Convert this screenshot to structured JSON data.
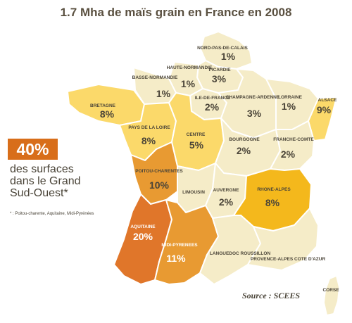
{
  "title": "1.7 Mha de maïs grain en France en 2008",
  "callout": {
    "percent": "40%",
    "lines": [
      "des surfaces",
      "dans le Grand",
      "Sud-Ouest*"
    ],
    "footnote": "* : Poitou-charente, Aquitaine, Midi-Pyrénées"
  },
  "source": "Source : SCEES",
  "colors": {
    "pale": "#f5ecc8",
    "light_yellow": "#fbd96a",
    "yellow": "#f4b81c",
    "orange": "#e89a32",
    "dark_orange": "#e0762a",
    "border": "#ffffff"
  },
  "regions": [
    {
      "name": "NORD-PAS-DE-CALAIS",
      "value": "1%"
    },
    {
      "name": "PICARDIE",
      "value": "3%"
    },
    {
      "name": "HAUTE-NORMANDIE",
      "value": "1%"
    },
    {
      "name": "BASSE-NORMANDIE",
      "value": "1%"
    },
    {
      "name": "ILE-DE-FRANCE",
      "value": "2%"
    },
    {
      "name": "CHAMPAGNE-ARDENNE",
      "value": "3%"
    },
    {
      "name": "LORRAINE",
      "value": "1%"
    },
    {
      "name": "ALSACE",
      "value": "9%"
    },
    {
      "name": "BRETAGNE",
      "value": "8%"
    },
    {
      "name": "PAYS DE LA LOIRE",
      "value": "8%"
    },
    {
      "name": "CENTRE",
      "value": "5%"
    },
    {
      "name": "BOURGOGNE",
      "value": "2%"
    },
    {
      "name": "FRANCHE-COMTE",
      "value": "2%"
    },
    {
      "name": "POITOU-CHARENTES",
      "value": "10%"
    },
    {
      "name": "LIMOUSIN",
      "value": ""
    },
    {
      "name": "AUVERGNE",
      "value": "2%"
    },
    {
      "name": "RHONE-ALPES",
      "value": "8%"
    },
    {
      "name": "AQUITAINE",
      "value": "20%"
    },
    {
      "name": "MIDI-PYRENEES",
      "value": "11%"
    },
    {
      "name": "LANGUEDOC ROUSSILLON",
      "value": ""
    },
    {
      "name": "PROVENCE-ALPES COTE D'AZUR",
      "value": ""
    },
    {
      "name": "CORSE",
      "value": ""
    }
  ]
}
